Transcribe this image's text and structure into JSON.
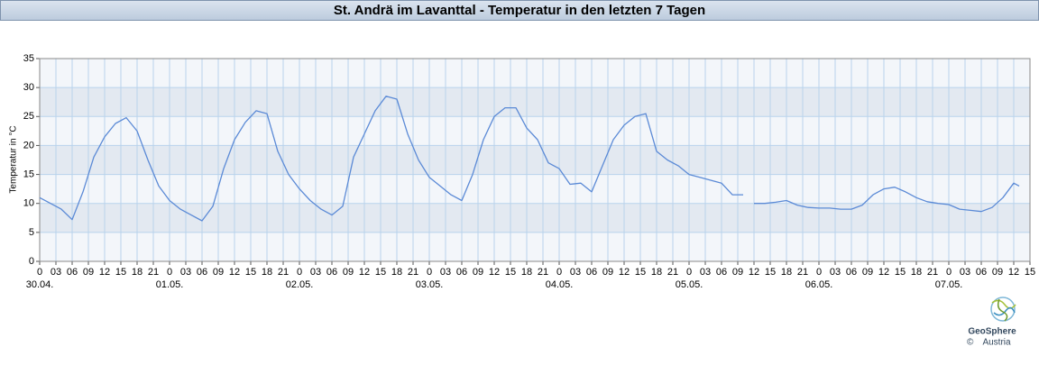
{
  "header": {
    "title": "St. Andrä im Lavanttal - Temperatur in den letzten 7 Tagen"
  },
  "logo": {
    "name": "GeoSphere",
    "sub": "Austria",
    "copyright": "©"
  },
  "chart_data": {
    "type": "line",
    "ylabel": "Temperatur in °C",
    "color": "#5b8ad6",
    "grid": true,
    "grid_color": "#b9d3ec",
    "band_colors": [
      "#f3f6fa",
      "#e3e9f1"
    ],
    "x": [
      0,
      2,
      4,
      6,
      8,
      10,
      12,
      14,
      16,
      18,
      20,
      22,
      24,
      26,
      28,
      30,
      32,
      34,
      36,
      38,
      40,
      42,
      44,
      46,
      48,
      50,
      52,
      54,
      56,
      58,
      60,
      62,
      64,
      66,
      68,
      70,
      72,
      74,
      76,
      78,
      80,
      82,
      84,
      86,
      88,
      90,
      92,
      94,
      96,
      98,
      100,
      102,
      104,
      106,
      108,
      110,
      112,
      114,
      116,
      118,
      120,
      122,
      124,
      126,
      128,
      130,
      131,
      132,
      134,
      136,
      138,
      140,
      142,
      144,
      146,
      148,
      150,
      152,
      154,
      156,
      158,
      160,
      162,
      164,
      166,
      168,
      170,
      172,
      174,
      176,
      178,
      180,
      181
    ],
    "values": [
      11,
      10,
      9,
      7.2,
      12,
      18,
      21.5,
      23.8,
      24.8,
      22.5,
      17.5,
      13,
      10.5,
      9,
      8,
      7,
      9.5,
      16,
      21,
      24,
      26,
      25.5,
      19,
      15,
      12.5,
      10.5,
      9,
      8,
      9.5,
      18,
      22,
      26,
      28.5,
      28,
      22,
      17.5,
      14.5,
      13,
      11.5,
      10.5,
      15,
      21,
      25,
      26.5,
      26.5,
      23,
      21,
      17,
      16,
      13.3,
      13.5,
      12,
      16.5,
      21,
      23.5,
      25,
      25.5,
      19,
      17.5,
      16.5,
      15,
      14.5,
      14,
      13.5,
      11.5,
      11.5,
      null,
      10,
      10,
      10.2,
      10.5,
      9.7,
      9.3,
      9.2,
      9.2,
      9,
      9,
      9.7,
      11.5,
      12.5,
      12.8,
      12,
      11,
      10.3,
      10,
      9.8,
      9,
      8.8,
      8.6,
      9.3,
      11,
      13.5,
      13
    ],
    "xlim": [
      0,
      183
    ],
    "ylim": [
      0,
      35
    ],
    "yticks": [
      0,
      5,
      10,
      15,
      20,
      25,
      30,
      35
    ],
    "xticks": [
      0,
      {
        "value": 3,
        "label": "03"
      },
      {
        "value": 6,
        "label": "06"
      },
      {
        "value": 9,
        "label": "09"
      },
      12,
      15,
      18,
      21,
      {
        "value": 24,
        "label": "0"
      },
      {
        "value": 27,
        "label": "03"
      },
      {
        "value": 30,
        "label": "06"
      },
      {
        "value": 33,
        "label": "09"
      },
      {
        "value": 36,
        "label": "12"
      },
      {
        "value": 39,
        "label": "15"
      },
      {
        "value": 42,
        "label": "18"
      },
      {
        "value": 45,
        "label": "21"
      },
      {
        "value": 48,
        "label": "0"
      },
      {
        "value": 51,
        "label": "03"
      },
      {
        "value": 54,
        "label": "06"
      },
      {
        "value": 57,
        "label": "09"
      },
      {
        "value": 60,
        "label": "12"
      },
      {
        "value": 63,
        "label": "15"
      },
      {
        "value": 66,
        "label": "18"
      },
      {
        "value": 69,
        "label": "21"
      },
      {
        "value": 72,
        "label": "0"
      },
      {
        "value": 75,
        "label": "03"
      },
      {
        "value": 78,
        "label": "06"
      },
      {
        "value": 81,
        "label": "09"
      },
      {
        "value": 84,
        "label": "12"
      },
      {
        "value": 87,
        "label": "15"
      },
      {
        "value": 90,
        "label": "18"
      },
      {
        "value": 93,
        "label": "21"
      },
      {
        "value": 96,
        "label": "0"
      },
      {
        "value": 99,
        "label": "03"
      },
      {
        "value": 102,
        "label": "06"
      },
      {
        "value": 105,
        "label": "09"
      },
      {
        "value": 108,
        "label": "12"
      },
      {
        "value": 111,
        "label": "15"
      },
      {
        "value": 114,
        "label": "18"
      },
      {
        "value": 117,
        "label": "21"
      },
      {
        "value": 120,
        "label": "0"
      },
      {
        "value": 123,
        "label": "03"
      },
      {
        "value": 126,
        "label": "06"
      },
      {
        "value": 129,
        "label": "09"
      },
      {
        "value": 132,
        "label": "12"
      },
      {
        "value": 135,
        "label": "15"
      },
      {
        "value": 138,
        "label": "18"
      },
      {
        "value": 141,
        "label": "21"
      },
      {
        "value": 144,
        "label": "0"
      },
      {
        "value": 147,
        "label": "03"
      },
      {
        "value": 150,
        "label": "06"
      },
      {
        "value": 153,
        "label": "09"
      },
      {
        "value": 156,
        "label": "12"
      },
      {
        "value": 159,
        "label": "15"
      },
      {
        "value": 162,
        "label": "18"
      },
      {
        "value": 165,
        "label": "21"
      },
      {
        "value": 168,
        "label": "0"
      },
      {
        "value": 171,
        "label": "03"
      },
      {
        "value": 174,
        "label": "06"
      },
      {
        "value": 177,
        "label": "09"
      },
      {
        "value": 180,
        "label": "12"
      },
      {
        "value": 183,
        "label": "15"
      }
    ],
    "xdates": [
      {
        "value": 0,
        "label": "30.04."
      },
      {
        "value": 24,
        "label": "01.05."
      },
      {
        "value": 48,
        "label": "02.05."
      },
      {
        "value": 72,
        "label": "03.05."
      },
      {
        "value": 96,
        "label": "04.05."
      },
      {
        "value": 120,
        "label": "05.05."
      },
      {
        "value": 144,
        "label": "06.05."
      },
      {
        "value": 168,
        "label": "07.05."
      }
    ]
  }
}
